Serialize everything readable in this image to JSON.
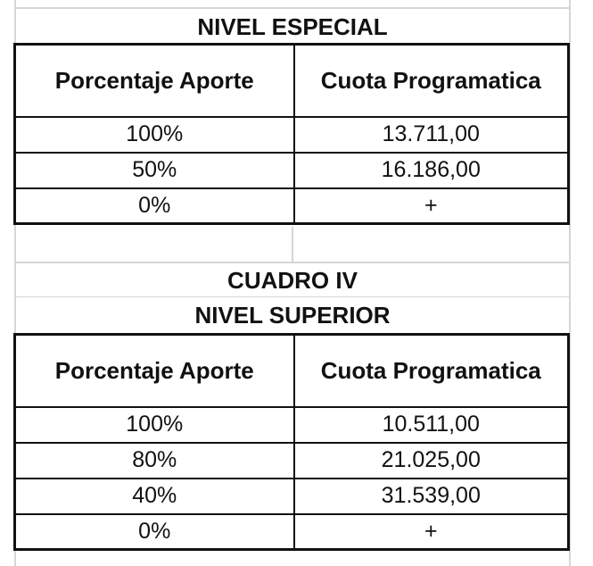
{
  "sections": [
    {
      "titles": [
        "NIVEL ESPECIAL"
      ],
      "headers": [
        "Porcentaje Aporte",
        "Cuota Programatica"
      ],
      "rows": [
        [
          "100%",
          "13.711,00"
        ],
        [
          "50%",
          "16.186,00"
        ],
        [
          "0%",
          "+"
        ]
      ]
    },
    {
      "titles": [
        "CUADRO IV",
        "NIVEL SUPERIOR"
      ],
      "headers": [
        "Porcentaje Aporte",
        "Cuota Programatica"
      ],
      "rows": [
        [
          "100%",
          "10.511,00"
        ],
        [
          "80%",
          "21.025,00"
        ],
        [
          "40%",
          "31.539,00"
        ],
        [
          "0%",
          "+"
        ]
      ]
    }
  ]
}
